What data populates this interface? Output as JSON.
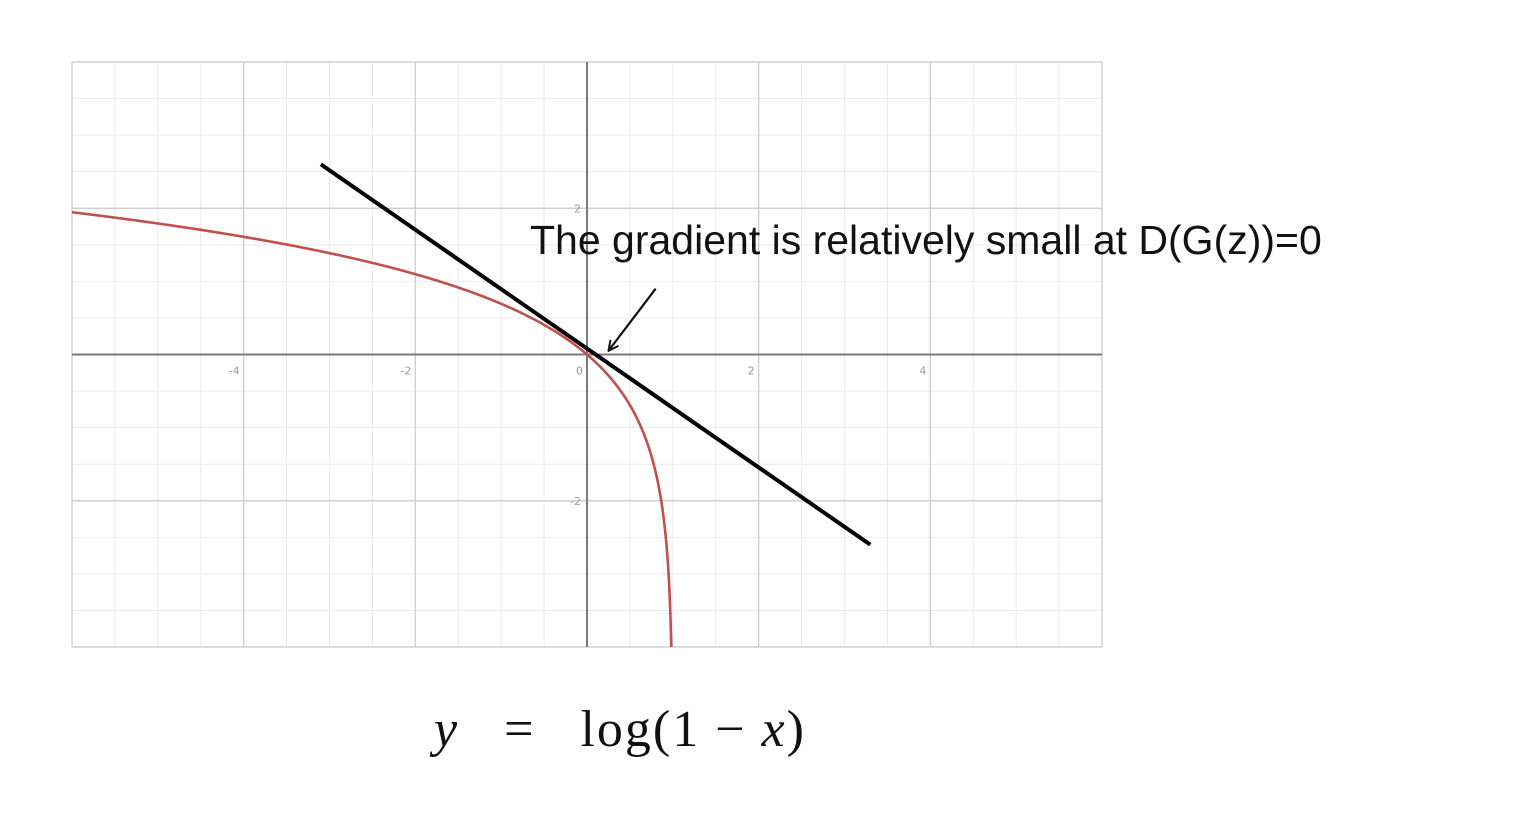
{
  "chart_data": {
    "type": "line",
    "title": "",
    "xlabel": "",
    "ylabel": "",
    "xlim": [
      -6,
      6
    ],
    "ylim": [
      -4,
      4
    ],
    "grid": true,
    "x_ticks": [
      -4,
      -2,
      0,
      2,
      4
    ],
    "y_ticks": [
      2,
      -2
    ],
    "x_tick_labels": [
      "-4",
      "-2",
      "0",
      "2",
      "4"
    ],
    "y_tick_labels": [
      "2",
      "-2"
    ],
    "series": [
      {
        "function": "log(1 - x)",
        "color": "#c0504d",
        "x": [
          -6,
          -5,
          -4,
          -3,
          -2,
          -1.5,
          -1,
          -0.5,
          0,
          0.25,
          0.5,
          0.7,
          0.8,
          0.9,
          0.95,
          0.98
        ],
        "y": [
          1.946,
          1.792,
          1.609,
          1.386,
          1.099,
          0.916,
          0.693,
          0.405,
          0,
          -0.288,
          -0.693,
          -1.204,
          -1.609,
          -2.303,
          -2.996,
          -3.912
        ]
      },
      {
        "function": "tangent",
        "color": "#000000",
        "x": [
          -3.1,
          3.3
        ],
        "y": [
          2.6,
          -2.6
        ]
      }
    ],
    "annotations": [
      {
        "text": "The gradient is relatively small at D(G(z))=0",
        "arrow_to": [
          0.25,
          0.05
        ],
        "arrow_from": [
          0.8,
          0.9
        ]
      }
    ]
  },
  "equation": {
    "lhs": "y",
    "equals": "=",
    "fn_open": "log(1 −",
    "var": "x",
    "close": ")"
  }
}
